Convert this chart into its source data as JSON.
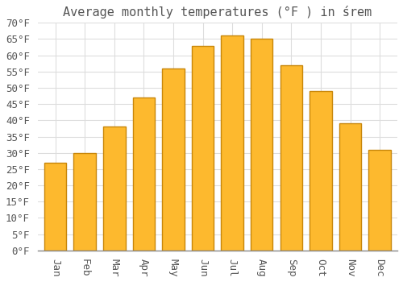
{
  "title": "Average monthly temperatures (°F ) in śrem",
  "months": [
    "Jan",
    "Feb",
    "Mar",
    "Apr",
    "May",
    "Jun",
    "Jul",
    "Aug",
    "Sep",
    "Oct",
    "Nov",
    "Dec"
  ],
  "values": [
    27,
    30,
    38,
    47,
    56,
    63,
    66,
    65,
    57,
    49,
    39,
    31
  ],
  "bar_color_face": "#FDB92E",
  "bar_color_edge": "#C8860A",
  "background_color": "#FFFFFF",
  "grid_color": "#DDDDDD",
  "text_color": "#555555",
  "ylim": [
    0,
    70
  ],
  "ytick_step": 5,
  "ylabel_suffix": "°F",
  "title_fontsize": 11,
  "tick_fontsize": 9,
  "font_family": "monospace",
  "bar_width": 0.75
}
